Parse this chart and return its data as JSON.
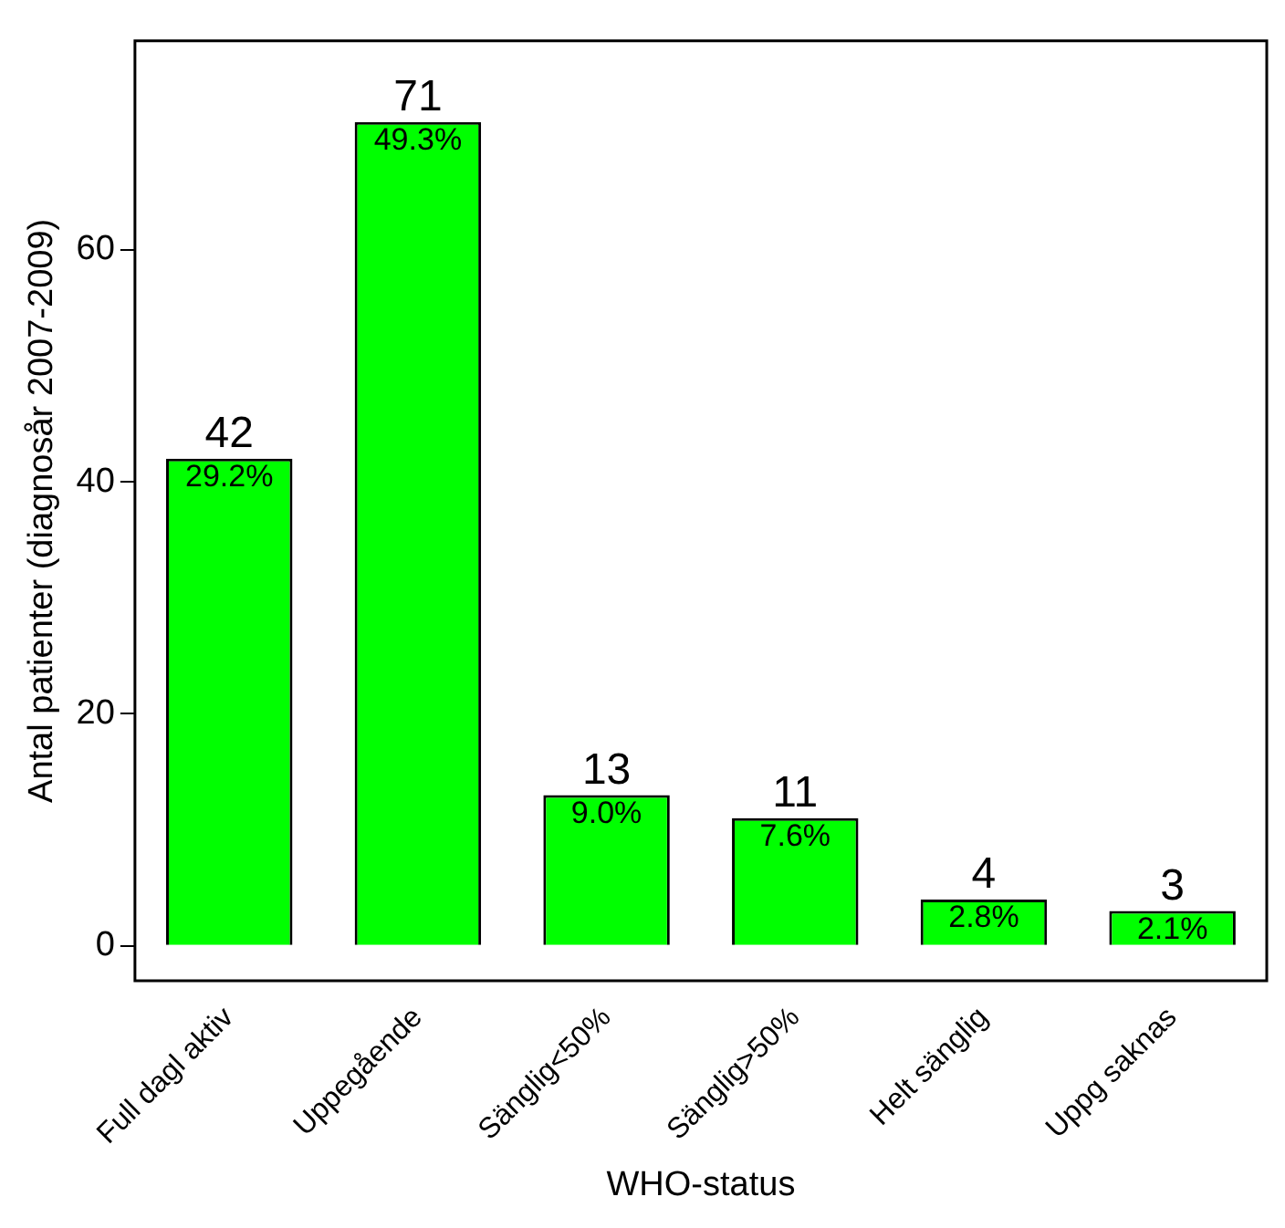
{
  "chart_data": {
    "type": "bar",
    "xlabel": "WHO-status",
    "ylabel": "Antal patienter (diagnosår 2007-2009)",
    "categories": [
      "Full dagl aktiv",
      "Uppegående",
      "Sänglig<50%",
      "Sänglig>50%",
      "Helt sänglig",
      "Uppg saknas"
    ],
    "values": [
      42,
      71,
      13,
      11,
      4,
      3
    ],
    "color": "#00ff00",
    "data_labels": true,
    "ylim": [
      -3,
      78
    ],
    "yticks": [
      0,
      20,
      40,
      60
    ],
    "grid": false,
    "legend": false,
    "annotations": [
      {
        "text": "29.2%",
        "x": "Full dagl aktiv",
        "y": 42
      },
      {
        "text": "49.3%",
        "x": "Uppegående",
        "y": 71
      },
      {
        "text": "9.0%",
        "x": "Sänglig<50%",
        "y": 13
      },
      {
        "text": "7.6%",
        "x": "Sänglig>50%",
        "y": 11
      },
      {
        "text": "2.8%",
        "x": "Helt sänglig",
        "y": 4
      },
      {
        "text": "2.1%",
        "x": "Uppg saknas",
        "y": 3
      }
    ]
  }
}
